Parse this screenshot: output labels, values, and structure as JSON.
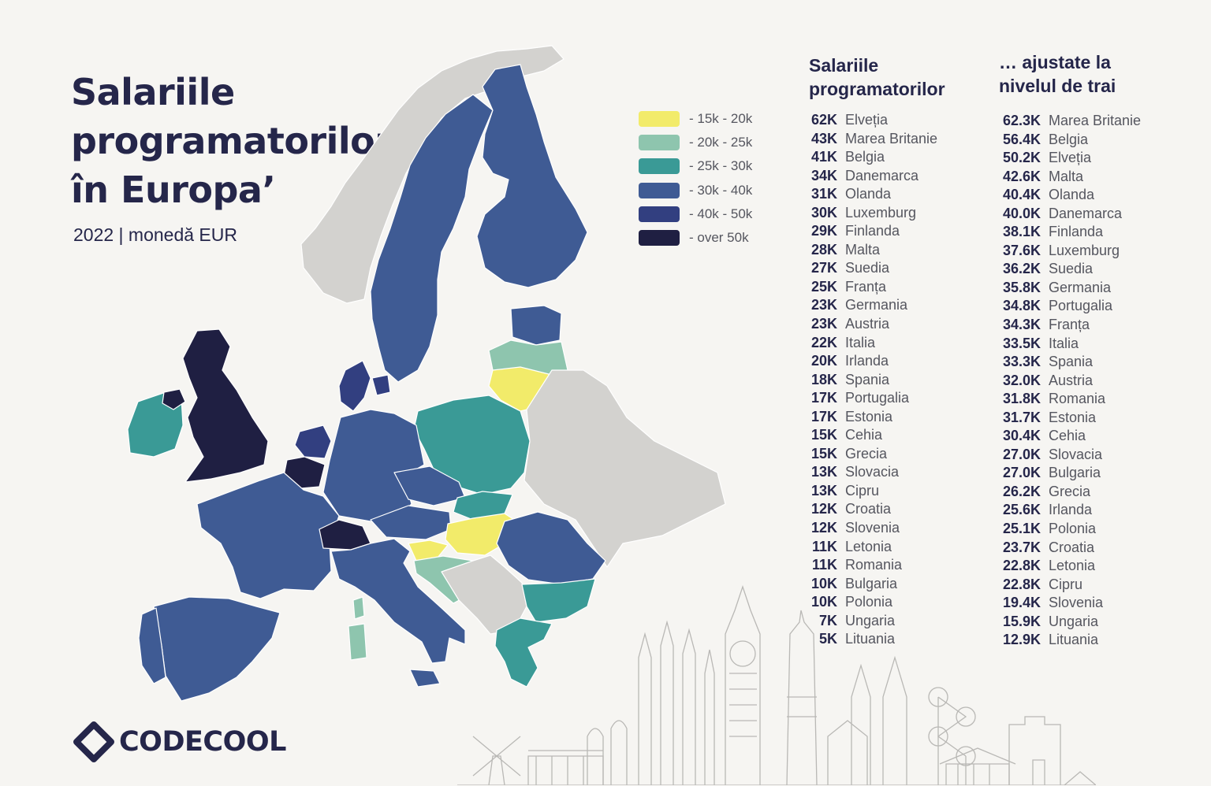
{
  "title": {
    "line1": "Salariile",
    "line2": "programatorilor",
    "line3": "în Europa’"
  },
  "subtitle": "2022 | monedă EUR",
  "colors": {
    "band_15_20": "#f2eb6a",
    "band_20_25": "#8ec5ae",
    "band_25_30": "#3a9a96",
    "band_30_40": "#3f5b94",
    "band_40_50": "#323f80",
    "band_over_50": "#1f1f42",
    "no_data": "#d3d2cf",
    "background": "#f6f5f2"
  },
  "legend": [
    {
      "label": "- 15k - 20k",
      "color": "#f2eb6a"
    },
    {
      "label": "- 20k - 25k",
      "color": "#8ec5ae"
    },
    {
      "label": "- 25k - 30k",
      "color": "#3a9a96"
    },
    {
      "label": "- 30k - 40k",
      "color": "#3f5b94"
    },
    {
      "label": "- 40k - 50k",
      "color": "#323f80"
    },
    {
      "label": "- over 50k",
      "color": "#1f1f42"
    }
  ],
  "salaries": {
    "header_line1": "Salariile",
    "header_line2": "programatorilor",
    "items": [
      {
        "value": "62K",
        "country": "Elveția"
      },
      {
        "value": "43K",
        "country": "Marea Britanie"
      },
      {
        "value": "41K",
        "country": "Belgia"
      },
      {
        "value": "34K",
        "country": "Danemarca"
      },
      {
        "value": "31K",
        "country": "Olanda"
      },
      {
        "value": "30K",
        "country": "Luxemburg"
      },
      {
        "value": "29K",
        "country": "Finlanda"
      },
      {
        "value": "28K",
        "country": "Malta"
      },
      {
        "value": "27K",
        "country": "Suedia"
      },
      {
        "value": "25K",
        "country": "Franța"
      },
      {
        "value": "23K",
        "country": "Germania"
      },
      {
        "value": "23K",
        "country": "Austria"
      },
      {
        "value": "22K",
        "country": "Italia"
      },
      {
        "value": "20K",
        "country": "Irlanda"
      },
      {
        "value": "18K",
        "country": "Spania"
      },
      {
        "value": "17K",
        "country": "Portugalia"
      },
      {
        "value": "17K",
        "country": "Estonia"
      },
      {
        "value": "15K",
        "country": "Cehia"
      },
      {
        "value": "15K",
        "country": "Grecia"
      },
      {
        "value": "13K",
        "country": "Slovacia"
      },
      {
        "value": "13K",
        "country": "Cipru"
      },
      {
        "value": "12K",
        "country": "Croatia"
      },
      {
        "value": "12K",
        "country": "Slovenia"
      },
      {
        "value": "11K",
        "country": "Letonia"
      },
      {
        "value": "11K",
        "country": "Romania"
      },
      {
        "value": "10K",
        "country": "Bulgaria"
      },
      {
        "value": "10K",
        "country": "Polonia"
      },
      {
        "value": "7K",
        "country": "Ungaria"
      },
      {
        "value": "5K",
        "country": "Lituania"
      }
    ]
  },
  "adjusted": {
    "header_line1": "… ajustate la",
    "header_line2": "nivelul de trai",
    "items": [
      {
        "value": "62.3K",
        "country": "Marea Britanie"
      },
      {
        "value": "56.4K",
        "country": "Belgia"
      },
      {
        "value": "50.2K",
        "country": "Elveția"
      },
      {
        "value": "42.6K",
        "country": "Malta"
      },
      {
        "value": "40.4K",
        "country": "Olanda"
      },
      {
        "value": "40.0K",
        "country": "Danemarca"
      },
      {
        "value": "38.1K",
        "country": "Finlanda"
      },
      {
        "value": "37.6K",
        "country": "Luxemburg"
      },
      {
        "value": "36.2K",
        "country": "Suedia"
      },
      {
        "value": "35.8K",
        "country": "Germania"
      },
      {
        "value": "34.8K",
        "country": "Portugalia"
      },
      {
        "value": "34.3K",
        "country": "Franța"
      },
      {
        "value": "33.5K",
        "country": "Italia"
      },
      {
        "value": "33.3K",
        "country": "Spania"
      },
      {
        "value": "32.0K",
        "country": "Austria"
      },
      {
        "value": "31.8K",
        "country": "Romania"
      },
      {
        "value": "31.7K",
        "country": "Estonia"
      },
      {
        "value": "30.4K",
        "country": "Cehia"
      },
      {
        "value": "27.0K",
        "country": "Slovacia"
      },
      {
        "value": "27.0K",
        "country": "Bulgaria"
      },
      {
        "value": "26.2K",
        "country": "Grecia"
      },
      {
        "value": "25.6K",
        "country": "Irlanda"
      },
      {
        "value": "25.1K",
        "country": "Polonia"
      },
      {
        "value": "23.7K",
        "country": "Croatia"
      },
      {
        "value": "22.8K",
        "country": "Letonia"
      },
      {
        "value": "22.8K",
        "country": "Cipru"
      },
      {
        "value": "19.4K",
        "country": "Slovenia"
      },
      {
        "value": "15.9K",
        "country": "Ungaria"
      },
      {
        "value": "12.9K",
        "country": "Lituania"
      }
    ]
  },
  "logo": {
    "text": "CODECOOL"
  }
}
